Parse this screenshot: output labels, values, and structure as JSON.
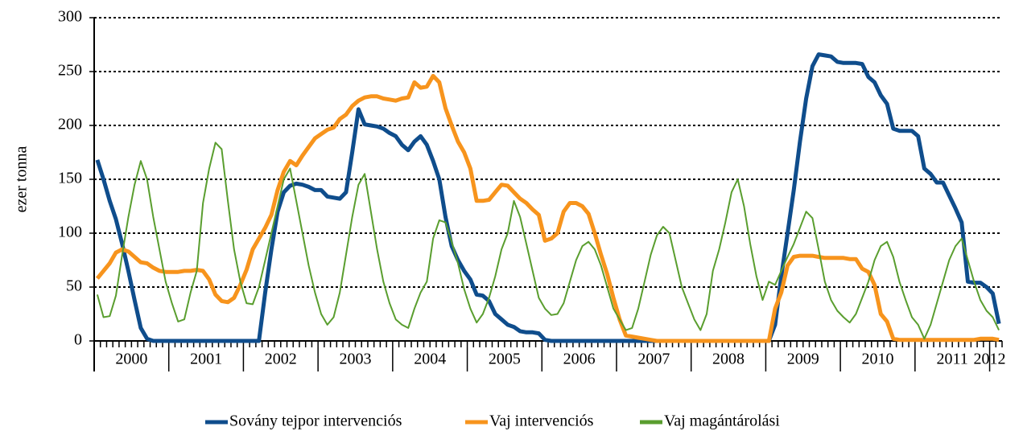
{
  "chart_data": {
    "type": "line",
    "y_label": "ezer tonna",
    "categories": [
      null,
      null,
      null,
      null,
      null,
      null,
      "2000",
      null,
      null,
      null,
      null,
      null,
      null,
      null,
      null,
      null,
      null,
      null,
      "2001",
      null,
      null,
      null,
      null,
      null,
      null,
      null,
      null,
      null,
      null,
      null,
      "2002",
      null,
      null,
      null,
      null,
      null,
      null,
      null,
      null,
      null,
      null,
      null,
      "2003",
      null,
      null,
      null,
      null,
      null,
      null,
      null,
      null,
      null,
      null,
      null,
      "2004",
      null,
      null,
      null,
      null,
      null,
      null,
      null,
      null,
      null,
      null,
      null,
      "2005",
      null,
      null,
      null,
      null,
      null,
      null,
      null,
      null,
      null,
      null,
      null,
      "2006",
      null,
      null,
      null,
      null,
      null,
      null,
      null,
      null,
      null,
      null,
      null,
      "2007",
      null,
      null,
      null,
      null,
      null,
      null,
      null,
      null,
      null,
      null,
      null,
      "2008",
      null,
      null,
      null,
      null,
      null,
      null,
      null,
      null,
      null,
      null,
      null,
      "2009",
      null,
      null,
      null,
      null,
      null,
      null,
      null,
      null,
      null,
      null,
      null,
      "2010",
      null,
      null,
      null,
      null,
      null,
      null,
      null,
      null,
      null,
      null,
      null,
      "2011",
      null,
      null,
      null,
      null,
      null,
      "2012",
      null
    ],
    "series": [
      {
        "name": "Sovány tejpor intervenciós",
        "color": "#0f4d8c",
        "width": 5,
        "values": [
          168,
          150,
          130,
          113,
          90,
          65,
          38,
          12,
          2,
          0,
          0,
          0,
          0,
          0,
          0,
          0,
          0,
          0,
          0,
          0,
          0,
          0,
          0,
          0,
          0,
          0,
          0,
          45,
          85,
          120,
          138,
          144,
          146,
          145,
          143,
          140,
          140,
          134,
          133,
          132,
          138,
          175,
          215,
          201,
          200,
          199,
          197,
          193,
          190,
          182,
          177,
          185,
          190,
          182,
          167,
          150,
          115,
          88,
          75,
          65,
          57,
          43,
          42,
          37,
          25,
          20,
          15,
          13,
          9,
          8,
          8,
          7,
          1,
          0,
          0,
          0,
          0,
          0,
          0,
          0,
          0,
          0,
          0,
          0,
          0,
          0,
          0,
          0,
          0,
          0,
          0,
          0,
          0,
          0,
          0,
          0,
          0,
          0,
          0,
          0,
          0,
          0,
          0,
          0,
          0,
          0,
          0,
          0,
          0,
          15,
          60,
          100,
          140,
          185,
          225,
          255,
          266,
          265,
          264,
          259,
          258,
          258,
          258,
          257,
          245,
          240,
          228,
          220,
          197,
          195,
          195,
          195,
          190,
          160,
          155,
          147,
          147,
          135,
          123,
          110,
          55,
          54,
          54,
          50,
          44,
          16
        ]
      },
      {
        "name": "Vaj intervenciós",
        "color": "#f7941d",
        "width": 5,
        "values": [
          58,
          65,
          72,
          82,
          85,
          83,
          78,
          73,
          72,
          68,
          65,
          64,
          64,
          64,
          65,
          65,
          66,
          65,
          57,
          43,
          37,
          36,
          40,
          52,
          66,
          85,
          95,
          105,
          117,
          140,
          157,
          167,
          163,
          172,
          180,
          188,
          192,
          196,
          198,
          206,
          210,
          218,
          223,
          226,
          227,
          227,
          225,
          224,
          223,
          225,
          226,
          240,
          235,
          236,
          246,
          240,
          216,
          200,
          185,
          175,
          160,
          130,
          130,
          131,
          138,
          145,
          144,
          138,
          132,
          128,
          122,
          117,
          93,
          95,
          100,
          120,
          128,
          128,
          125,
          118,
          100,
          80,
          62,
          40,
          20,
          5,
          4,
          3,
          2,
          1,
          0,
          0,
          0,
          0,
          0,
          0,
          0,
          0,
          0,
          0,
          0,
          0,
          0,
          0,
          0,
          0,
          0,
          0,
          0,
          30,
          45,
          70,
          78,
          79,
          79,
          79,
          78,
          77,
          77,
          77,
          77,
          76,
          76,
          67,
          64,
          52,
          25,
          18,
          2,
          1,
          1,
          1,
          1,
          1,
          1,
          1,
          1,
          1,
          1,
          1,
          1,
          1,
          2,
          2,
          2,
          1
        ]
      },
      {
        "name": "Vaj magántárolási",
        "color": "#5a9e2f",
        "width": 2,
        "values": [
          43,
          22,
          23,
          42,
          80,
          115,
          145,
          167,
          150,
          115,
          85,
          55,
          35,
          18,
          20,
          45,
          65,
          128,
          160,
          184,
          178,
          130,
          85,
          55,
          35,
          34,
          50,
          75,
          100,
          125,
          150,
          160,
          130,
          100,
          70,
          45,
          25,
          15,
          22,
          45,
          80,
          115,
          145,
          155,
          120,
          85,
          55,
          35,
          20,
          15,
          12,
          30,
          45,
          55,
          95,
          112,
          110,
          92,
          72,
          48,
          30,
          17,
          25,
          40,
          60,
          85,
          100,
          130,
          115,
          90,
          65,
          40,
          30,
          24,
          25,
          35,
          55,
          75,
          88,
          92,
          85,
          70,
          50,
          30,
          20,
          10,
          12,
          30,
          55,
          80,
          98,
          106,
          100,
          75,
          50,
          35,
          20,
          10,
          25,
          65,
          85,
          110,
          138,
          150,
          125,
          90,
          60,
          38,
          55,
          52,
          65,
          78,
          90,
          105,
          120,
          114,
          85,
          55,
          38,
          28,
          22,
          17,
          25,
          40,
          55,
          75,
          88,
          92,
          78,
          55,
          38,
          22,
          15,
          2,
          15,
          35,
          55,
          75,
          88,
          95,
          75,
          55,
          38,
          28,
          22,
          10
        ]
      }
    ],
    "ylim": [
      0,
      300
    ],
    "yticks": [
      0,
      50,
      100,
      150,
      200,
      250,
      300
    ],
    "grid": true,
    "legend": "bottom"
  }
}
